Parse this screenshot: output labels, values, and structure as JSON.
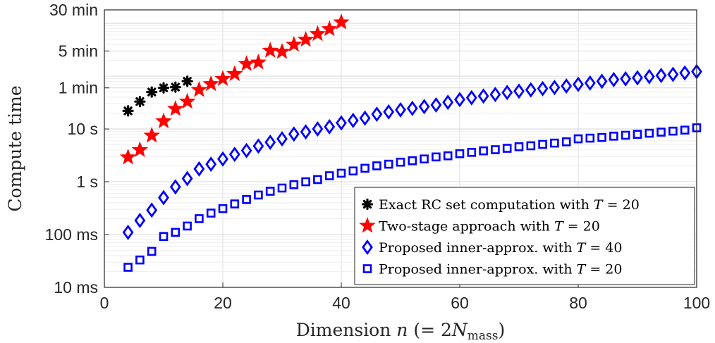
{
  "chart_data": {
    "type": "scatter",
    "title": "",
    "xlabel": "Dimension n (= 2N_mass)",
    "ylabel": "Compute time",
    "xlim": [
      0,
      100
    ],
    "ylim_seconds": [
      0.01,
      1800
    ],
    "yscale": "log",
    "grid": true,
    "legend_position": "bottom-right",
    "x_ticks": [
      0,
      20,
      40,
      60,
      80,
      100
    ],
    "y_ticks": [
      {
        "value": 0.01,
        "label": "10 ms"
      },
      {
        "value": 0.1,
        "label": "100 ms"
      },
      {
        "value": 1,
        "label": "1 s"
      },
      {
        "value": 10,
        "label": "10 s"
      },
      {
        "value": 60,
        "label": "1 min"
      },
      {
        "value": 300,
        "label": "5 min"
      },
      {
        "value": 1800,
        "label": "30 min"
      }
    ],
    "series": [
      {
        "name": "Exact RC set computation with T = 20",
        "marker": "asterisk",
        "color": "#000000",
        "x": [
          4,
          6,
          8,
          10,
          12,
          14
        ],
        "y": [
          22,
          33,
          50,
          60,
          62,
          80
        ]
      },
      {
        "name": "Two-stage approach with T = 20",
        "marker": "star",
        "color": "#ff0000",
        "x": [
          4,
          6,
          8,
          10,
          12,
          14,
          16,
          18,
          20,
          22,
          24,
          26,
          28,
          30,
          32,
          34,
          36,
          38,
          40
        ],
        "y": [
          2.9,
          4.0,
          7.5,
          14,
          24,
          33,
          55,
          71,
          89,
          110,
          170,
          182,
          305,
          290,
          395,
          490,
          630,
          780,
          1050
        ]
      },
      {
        "name": "Proposed inner-approx. with T = 40",
        "marker": "diamond",
        "color": "#0000ff",
        "x": [
          4,
          6,
          8,
          10,
          12,
          14,
          16,
          18,
          20,
          22,
          24,
          26,
          28,
          30,
          32,
          34,
          36,
          38,
          40,
          42,
          44,
          46,
          48,
          50,
          52,
          54,
          56,
          58,
          60,
          62,
          64,
          66,
          68,
          70,
          72,
          74,
          76,
          78,
          80,
          82,
          84,
          86,
          88,
          90,
          92,
          94,
          96,
          98,
          100
        ],
        "y": [
          0.11,
          0.185,
          0.29,
          0.5,
          0.8,
          1.15,
          1.75,
          2.15,
          2.7,
          3.3,
          3.9,
          4.75,
          5.6,
          6.5,
          8.0,
          8.8,
          10.0,
          11.0,
          13.0,
          14.5,
          16.0,
          19.0,
          21.0,
          23.0,
          24.5,
          26.5,
          28.5,
          32.0,
          36.0,
          39.0,
          42.0,
          45.0,
          49.0,
          52.0,
          55.0,
          58.0,
          61.0,
          65.0,
          70.0,
          74.0,
          80.0,
          86.0,
          89.0,
          93.0,
          98.0,
          103.0,
          108.0,
          115.0,
          122.0
        ]
      },
      {
        "name": "Proposed inner-approx. with T = 20",
        "marker": "square",
        "color": "#0000ff",
        "x": [
          4,
          6,
          8,
          10,
          12,
          14,
          16,
          18,
          20,
          22,
          24,
          26,
          28,
          30,
          32,
          34,
          36,
          38,
          40,
          42,
          44,
          46,
          48,
          50,
          52,
          54,
          56,
          58,
          60,
          62,
          64,
          66,
          68,
          70,
          72,
          74,
          76,
          78,
          80,
          82,
          84,
          86,
          88,
          90,
          92,
          94,
          96,
          98,
          100
        ],
        "y": [
          0.024,
          0.033,
          0.048,
          0.092,
          0.11,
          0.145,
          0.2,
          0.255,
          0.31,
          0.38,
          0.46,
          0.56,
          0.66,
          0.76,
          0.88,
          1.0,
          1.1,
          1.3,
          1.45,
          1.6,
          1.8,
          2.0,
          2.15,
          2.35,
          2.5,
          2.7,
          2.95,
          3.1,
          3.4,
          3.6,
          3.85,
          4.05,
          4.3,
          4.6,
          4.8,
          5.1,
          5.4,
          5.7,
          6.5,
          6.7,
          6.9,
          7.3,
          7.6,
          7.9,
          8.3,
          8.7,
          9.1,
          9.5,
          10.5
        ]
      }
    ]
  }
}
